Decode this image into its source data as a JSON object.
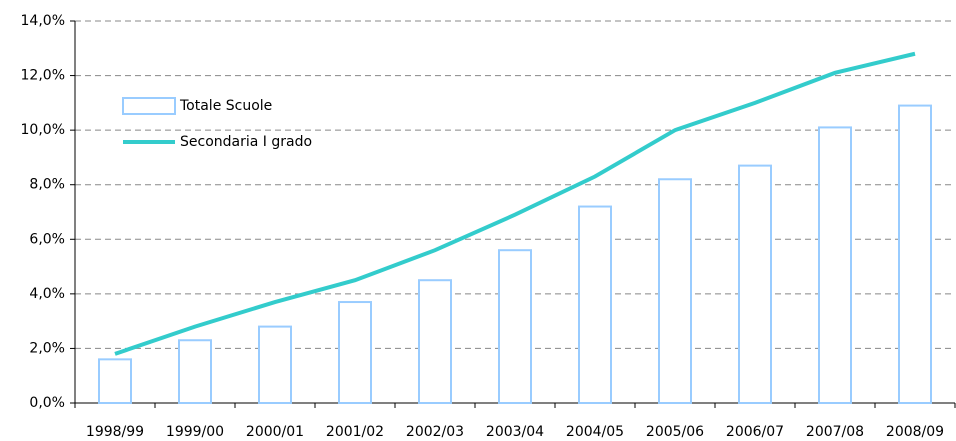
{
  "chart_data": {
    "type": "bar",
    "categories": [
      "1998/99",
      "1999/00",
      "2000/01",
      "2001/02",
      "2002/03",
      "2003/04",
      "2004/05",
      "2005/06",
      "2006/07",
      "2007/08",
      "2008/09"
    ],
    "series": [
      {
        "name": "Totale Scuole",
        "type": "bar",
        "color": "#99ccff",
        "values": [
          1.6,
          2.3,
          2.8,
          3.7,
          4.5,
          5.6,
          7.2,
          8.2,
          8.7,
          10.1,
          10.9
        ]
      },
      {
        "name": "Secondaria I grado",
        "type": "line",
        "color": "#33cccc",
        "values": [
          1.8,
          2.8,
          3.7,
          4.5,
          5.6,
          6.9,
          8.3,
          10.0,
          11.0,
          12.1,
          12.8
        ]
      }
    ],
    "ylim": [
      0,
      14
    ],
    "yticks": [
      {
        "value": 0,
        "label": "0,0%"
      },
      {
        "value": 2,
        "label": "2,0%"
      },
      {
        "value": 4,
        "label": "4,0%"
      },
      {
        "value": 6,
        "label": "6,0%"
      },
      {
        "value": 8,
        "label": "8,0%"
      },
      {
        "value": 10,
        "label": "10,0%"
      },
      {
        "value": 12,
        "label": "12,0%"
      },
      {
        "value": 14,
        "label": "14,0%"
      }
    ],
    "grid": true
  }
}
